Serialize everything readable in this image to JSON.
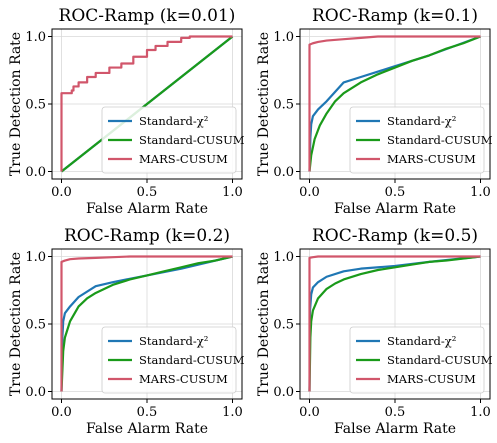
{
  "chart_data": [
    {
      "type": "line",
      "title": "ROC-Ramp (k=0.01)",
      "xlabel": "False Alarm Rate",
      "ylabel": "True Detection Rate",
      "xlim": [
        0,
        1
      ],
      "ylim": [
        0,
        1
      ],
      "xticks": [
        "0.0",
        "0.5",
        "1.0"
      ],
      "yticks": [
        "0.0",
        "0.5",
        "1.0"
      ],
      "grid": true,
      "legend": "bottom-right",
      "series": [
        {
          "name": "Standard-χ²",
          "color": "#1f77b4",
          "x": [
            0,
            0.25,
            0.5,
            0.75,
            1.0
          ],
          "y": [
            0,
            0.25,
            0.5,
            0.75,
            1.0
          ]
        },
        {
          "name": "Standard-CUSUM",
          "color": "#1a9a1a",
          "x": [
            0,
            0.25,
            0.5,
            0.75,
            1.0
          ],
          "y": [
            0,
            0.25,
            0.5,
            0.75,
            1.0
          ]
        },
        {
          "name": "MARS-CUSUM",
          "color": "#d1566b",
          "x": [
            0,
            0,
            0.005,
            0.06,
            0.06,
            0.07,
            0.07,
            0.1,
            0.1,
            0.15,
            0.15,
            0.2,
            0.2,
            0.28,
            0.28,
            0.35,
            0.35,
            0.42,
            0.42,
            0.5,
            0.5,
            0.55,
            0.55,
            0.62,
            0.62,
            0.7,
            0.7,
            0.75,
            0.75,
            1.0
          ],
          "y": [
            0,
            0.58,
            0.58,
            0.58,
            0.6,
            0.6,
            0.63,
            0.63,
            0.66,
            0.66,
            0.7,
            0.7,
            0.73,
            0.73,
            0.77,
            0.77,
            0.8,
            0.8,
            0.85,
            0.85,
            0.9,
            0.9,
            0.93,
            0.93,
            0.96,
            0.96,
            0.99,
            0.99,
            1.0,
            1.0
          ]
        }
      ]
    },
    {
      "type": "line",
      "title": "ROC-Ramp (k=0.1)",
      "xlabel": "False Alarm Rate",
      "ylabel": "True Detection Rate",
      "xlim": [
        0,
        1
      ],
      "ylim": [
        0,
        1
      ],
      "xticks": [
        "0.0",
        "0.5",
        "1.0"
      ],
      "yticks": [
        "0.0",
        "0.5",
        "1.0"
      ],
      "grid": true,
      "legend": "bottom-right",
      "series": [
        {
          "name": "Standard-χ²",
          "color": "#1f77b4",
          "x": [
            0,
            0.005,
            0.01,
            0.02,
            0.05,
            0.1,
            0.2,
            0.3,
            0.5,
            0.7,
            1.0
          ],
          "y": [
            0,
            0.25,
            0.35,
            0.41,
            0.46,
            0.52,
            0.66,
            0.7,
            0.78,
            0.86,
            1.0
          ]
        },
        {
          "name": "Standard-CUSUM",
          "color": "#1a9a1a",
          "x": [
            0,
            0.01,
            0.03,
            0.06,
            0.1,
            0.15,
            0.2,
            0.3,
            0.4,
            0.5,
            0.6,
            0.7,
            0.8,
            0.9,
            1.0
          ],
          "y": [
            0,
            0.12,
            0.24,
            0.34,
            0.43,
            0.52,
            0.58,
            0.66,
            0.72,
            0.77,
            0.82,
            0.86,
            0.91,
            0.95,
            1.0
          ]
        },
        {
          "name": "MARS-CUSUM",
          "color": "#d1566b",
          "x": [
            0,
            0,
            0.02,
            0.05,
            0.1,
            0.2,
            0.3,
            0.4,
            1.0
          ],
          "y": [
            0,
            0.94,
            0.95,
            0.96,
            0.97,
            0.98,
            0.99,
            1.0,
            1.0
          ]
        }
      ]
    },
    {
      "type": "line",
      "title": "ROC-Ramp (k=0.2)",
      "xlabel": "False Alarm Rate",
      "ylabel": "True Detection Rate",
      "xlim": [
        0,
        1
      ],
      "ylim": [
        0,
        1
      ],
      "xticks": [
        "0.0",
        "0.5",
        "1.0"
      ],
      "yticks": [
        "0.0",
        "0.5",
        "1.0"
      ],
      "grid": true,
      "legend": "bottom-right",
      "series": [
        {
          "name": "Standard-χ²",
          "color": "#1f77b4",
          "x": [
            0,
            0.005,
            0.01,
            0.02,
            0.05,
            0.1,
            0.2,
            0.3,
            0.5,
            0.7,
            1.0
          ],
          "y": [
            0,
            0.4,
            0.52,
            0.58,
            0.63,
            0.7,
            0.78,
            0.81,
            0.86,
            0.91,
            1.0
          ]
        },
        {
          "name": "Standard-CUSUM",
          "color": "#1a9a1a",
          "x": [
            0,
            0.01,
            0.02,
            0.05,
            0.1,
            0.15,
            0.2,
            0.3,
            0.4,
            0.5,
            0.6,
            0.7,
            0.8,
            0.9,
            1.0
          ],
          "y": [
            0,
            0.3,
            0.4,
            0.52,
            0.63,
            0.69,
            0.73,
            0.79,
            0.83,
            0.86,
            0.89,
            0.92,
            0.95,
            0.97,
            1.0
          ]
        },
        {
          "name": "MARS-CUSUM",
          "color": "#d1566b",
          "x": [
            0,
            0,
            0.02,
            0.05,
            0.1,
            0.2,
            0.3,
            0.4,
            1.0
          ],
          "y": [
            0,
            0.96,
            0.97,
            0.98,
            0.985,
            0.99,
            0.995,
            1.0,
            1.0
          ]
        }
      ]
    },
    {
      "type": "line",
      "title": "ROC-Ramp (k=0.5)",
      "xlabel": "False Alarm Rate",
      "ylabel": "True Detection Rate",
      "xlim": [
        0,
        1
      ],
      "ylim": [
        0,
        1
      ],
      "xticks": [
        "0.0",
        "0.5",
        "1.0"
      ],
      "yticks": [
        "0.0",
        "0.5",
        "1.0"
      ],
      "grid": true,
      "legend": "bottom-right",
      "series": [
        {
          "name": "Standard-χ²",
          "color": "#1f77b4",
          "x": [
            0,
            0.003,
            0.01,
            0.02,
            0.05,
            0.1,
            0.2,
            0.3,
            0.5,
            0.7,
            1.0
          ],
          "y": [
            0,
            0.6,
            0.72,
            0.77,
            0.81,
            0.85,
            0.89,
            0.91,
            0.93,
            0.96,
            1.0
          ]
        },
        {
          "name": "Standard-CUSUM",
          "color": "#1a9a1a",
          "x": [
            0,
            0.005,
            0.01,
            0.02,
            0.05,
            0.1,
            0.15,
            0.2,
            0.3,
            0.4,
            0.5,
            0.6,
            0.7,
            0.8,
            0.9,
            1.0
          ],
          "y": [
            0,
            0.4,
            0.52,
            0.6,
            0.69,
            0.76,
            0.8,
            0.83,
            0.87,
            0.9,
            0.92,
            0.94,
            0.96,
            0.97,
            0.985,
            1.0
          ]
        },
        {
          "name": "MARS-CUSUM",
          "color": "#d1566b",
          "x": [
            0,
            0,
            0.02,
            0.05,
            0.1,
            0.3,
            1.0
          ],
          "y": [
            0,
            0.99,
            0.995,
            1.0,
            1.0,
            1.0,
            1.0
          ]
        }
      ]
    }
  ]
}
